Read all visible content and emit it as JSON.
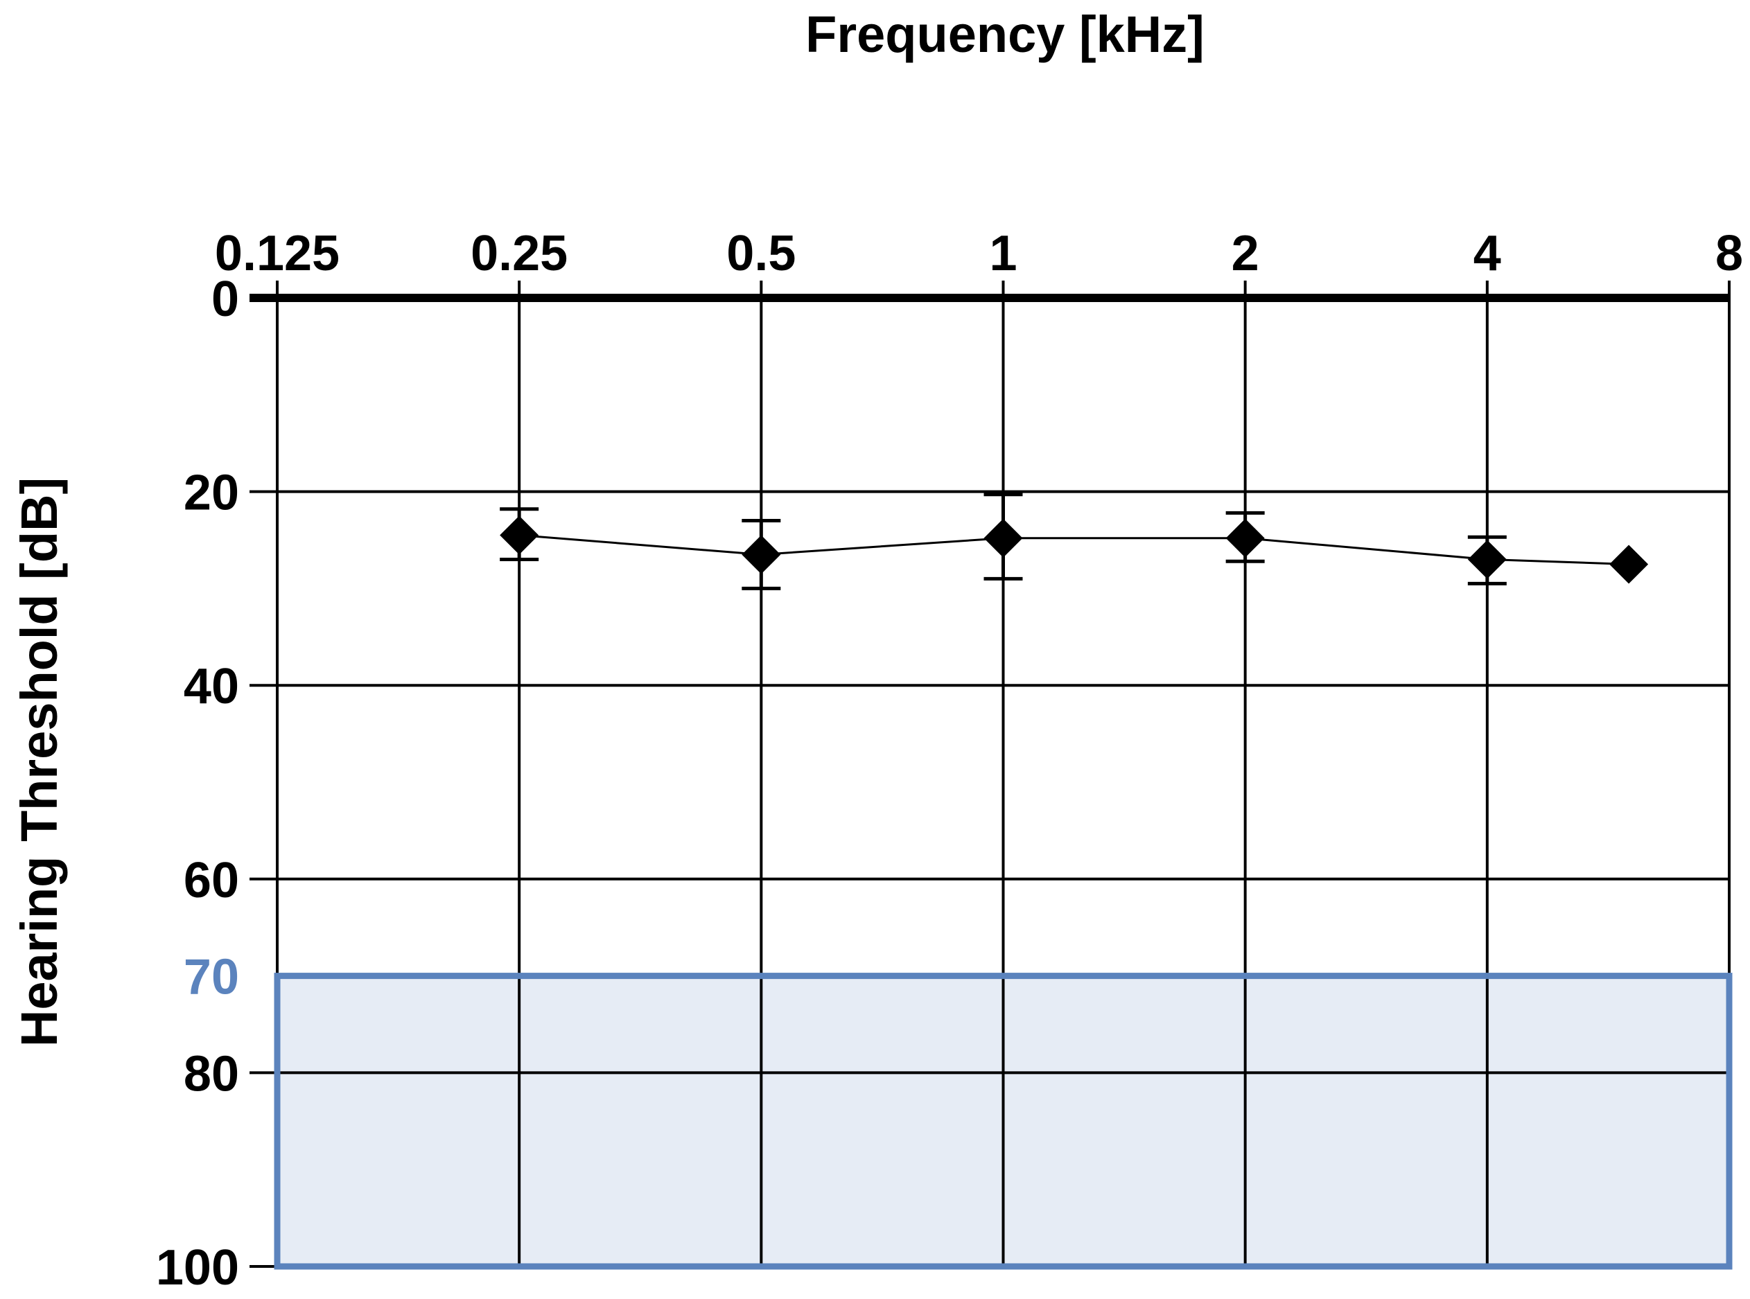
{
  "chart_data": {
    "type": "line",
    "title": "Frequency [kHz]",
    "xlabel": "Frequency [kHz]",
    "ylabel": "Hearing Threshold [dB]",
    "x_scale": "log2",
    "x_ticks": [
      0.125,
      0.25,
      0.5,
      1,
      2,
      4,
      8
    ],
    "x_tick_labels": [
      "0.125",
      "0.25",
      "0.5",
      "1",
      "2",
      "4",
      "8"
    ],
    "y_inverted": true,
    "ylim": [
      0,
      100
    ],
    "y_ticks": [
      0,
      20,
      40,
      60,
      80,
      100
    ],
    "y_tick_labels": [
      "0",
      "20",
      "40",
      "60",
      "80",
      "100"
    ],
    "grid": true,
    "highlight_band": {
      "from": 70,
      "to": 100,
      "label": "70",
      "fill": "#e6ecf5",
      "stroke": "#5b83bd"
    },
    "series": [
      {
        "color": "#000000",
        "marker": "diamond",
        "points": [
          {
            "x": 0.25,
            "y": 24.5,
            "err_low": 21.8,
            "err_high": 27.0
          },
          {
            "x": 0.5,
            "y": 26.5,
            "err_low": 23.0,
            "err_high": 30.0
          },
          {
            "x": 1,
            "y": 24.8,
            "err_low": 20.3,
            "err_high": 29.0
          },
          {
            "x": 2,
            "y": 24.8,
            "err_low": 22.2,
            "err_high": 27.2
          },
          {
            "x": 4,
            "y": 27.0,
            "err_low": 24.7,
            "err_high": 29.5
          },
          {
            "x": 6,
            "y": 27.5
          }
        ]
      }
    ]
  }
}
